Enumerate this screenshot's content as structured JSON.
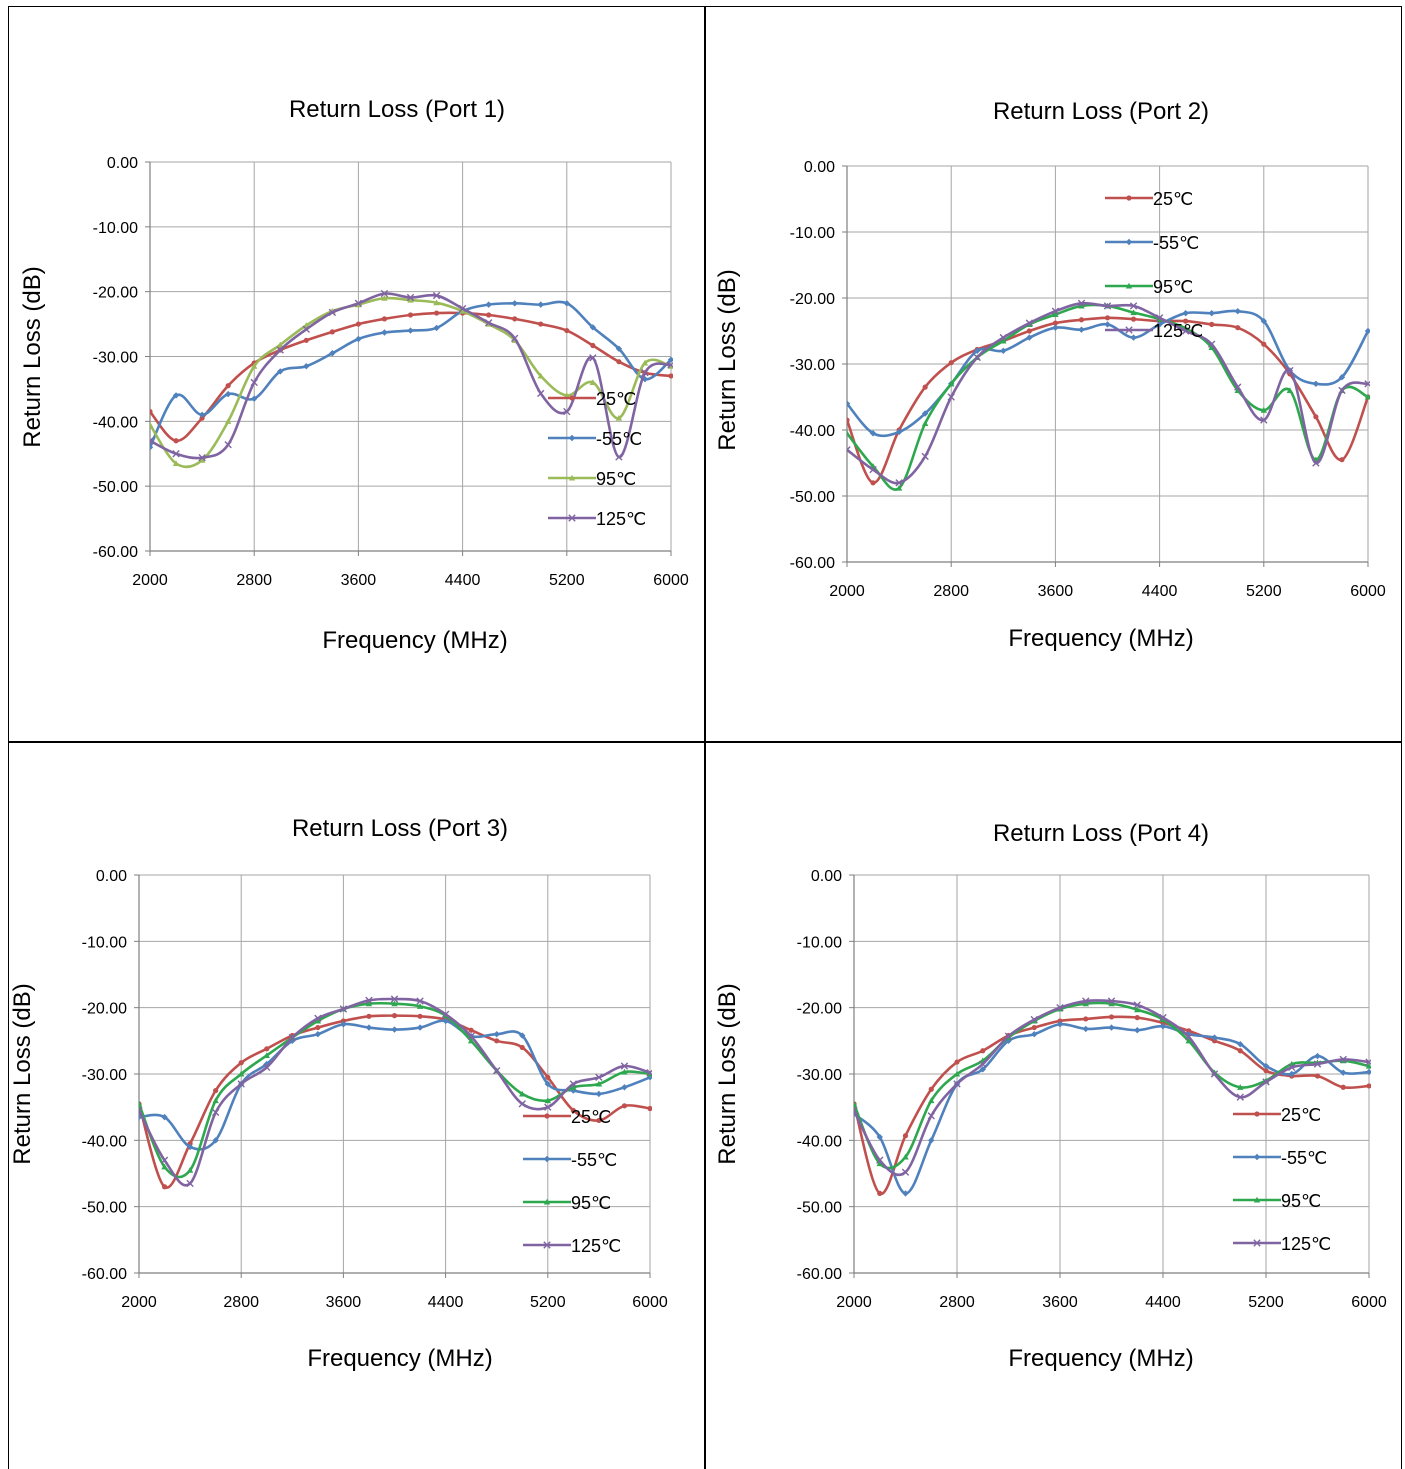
{
  "charts": [
    {
      "title": "Return Loss (Port 1)",
      "xlabel": "Frequency (MHz)",
      "ylabel": "Return Loss (dB)"
    },
    {
      "title": "Return Loss (Port 2)",
      "xlabel": "Frequency (MHz)",
      "ylabel": "Return Loss (dB)"
    },
    {
      "title": "Return Loss (Port 3)",
      "xlabel": "Frequency (MHz)",
      "ylabel": "Return Loss (dB)"
    },
    {
      "title": "Return Loss (Port 4)",
      "xlabel": "Frequency (MHz)",
      "ylabel": "Return Loss (dB)"
    }
  ],
  "chart_data": [
    {
      "type": "line",
      "title": "Return Loss (Port 1)",
      "xlabel": "Frequency (MHz)",
      "ylabel": "Return Loss (dB)",
      "xlim": [
        2000,
        6000
      ],
      "ylim": [
        -60,
        0
      ],
      "xticks": [
        "2000",
        "2800",
        "3600",
        "4400",
        "5200",
        "6000"
      ],
      "yticks": [
        "0.00",
        "-10.00",
        "-20.00",
        "-30.00",
        "-40.00",
        "-50.00",
        "-60.00"
      ],
      "grid": true,
      "legend_position": "right",
      "x": [
        2000,
        2200,
        2400,
        2600,
        2800,
        3000,
        3200,
        3400,
        3600,
        3800,
        4000,
        4200,
        4400,
        4600,
        4800,
        5000,
        5200,
        5400,
        5600,
        5800,
        6000
      ],
      "series": [
        {
          "name": "25℃",
          "color": "#c0504d",
          "marker": "circle",
          "values": [
            -38.5,
            -43,
            -39.5,
            -34.5,
            -31,
            -29,
            -27.5,
            -26.2,
            -25,
            -24.2,
            -23.6,
            -23.3,
            -23.3,
            -23.6,
            -24.2,
            -25,
            -26,
            -28.3,
            -30.8,
            -32.5,
            -33
          ]
        },
        {
          "name": "-55℃",
          "color": "#4f81bd",
          "marker": "diamond",
          "values": [
            -44,
            -36,
            -39,
            -35.8,
            -36.5,
            -32.3,
            -31.5,
            -29.5,
            -27.3,
            -26.3,
            -26,
            -25.6,
            -23,
            -22,
            -21.8,
            -22,
            -21.8,
            -25.5,
            -28.8,
            -33.5,
            -30.5
          ]
        },
        {
          "name": "95℃",
          "color": "#9bbb59",
          "marker": "triangle",
          "values": [
            -40.5,
            -46.5,
            -46,
            -40,
            -31.5,
            -28.2,
            -25.2,
            -23,
            -22,
            -21,
            -21.3,
            -21.7,
            -23,
            -25,
            -27.5,
            -33,
            -36,
            -34,
            -39.5,
            -31,
            -31.5
          ]
        },
        {
          "name": "125℃",
          "color": "#8064a2",
          "marker": "x",
          "values": [
            -43,
            -45,
            -45.6,
            -43.6,
            -34,
            -29,
            -25.8,
            -23.2,
            -21.8,
            -20.3,
            -20.9,
            -20.6,
            -22.6,
            -24.8,
            -27.2,
            -35.7,
            -38.5,
            -30.2,
            -45.5,
            -32.5,
            -31.3
          ]
        }
      ]
    },
    {
      "type": "line",
      "title": "Return Loss (Port 2)",
      "xlabel": "Frequency (MHz)",
      "ylabel": "Return Loss (dB)",
      "xlim": [
        2000,
        6000
      ],
      "ylim": [
        -60,
        0
      ],
      "xticks": [
        "2000",
        "2800",
        "3600",
        "4400",
        "5200",
        "6000"
      ],
      "yticks": [
        "0.00",
        "-10.00",
        "-20.00",
        "-30.00",
        "-40.00",
        "-50.00",
        "-60.00"
      ],
      "grid": true,
      "legend_position": "top-right",
      "x": [
        2000,
        2200,
        2400,
        2600,
        2800,
        3000,
        3200,
        3400,
        3600,
        3800,
        4000,
        4200,
        4400,
        4600,
        4800,
        5000,
        5200,
        5400,
        5600,
        5800,
        6000
      ],
      "series": [
        {
          "name": "25℃",
          "color": "#c0504d",
          "marker": "circle",
          "values": [
            -38.5,
            -48,
            -40,
            -33.5,
            -29.8,
            -27.8,
            -26.5,
            -25,
            -23.8,
            -23.3,
            -23,
            -23.2,
            -23.5,
            -23.5,
            -24,
            -24.5,
            -27,
            -31.5,
            -38,
            -44.5,
            -35
          ]
        },
        {
          "name": "-55℃",
          "color": "#4f81bd",
          "marker": "diamond",
          "values": [
            -36,
            -40.5,
            -40.3,
            -37.5,
            -33,
            -28,
            -28,
            -26,
            -24.5,
            -24.8,
            -24,
            -26,
            -24,
            -22.3,
            -22.3,
            -22,
            -23.5,
            -31,
            -33,
            -32,
            -25
          ]
        },
        {
          "name": "95℃",
          "color": "#2ea84e",
          "marker": "triangle",
          "values": [
            -40.5,
            -45.5,
            -48.8,
            -39,
            -33,
            -29,
            -26.5,
            -24,
            -22.5,
            -21.2,
            -21.2,
            -22.2,
            -23.2,
            -24.6,
            -27.5,
            -34,
            -37,
            -34,
            -44.5,
            -34,
            -35
          ]
        },
        {
          "name": "125℃",
          "color": "#8064a2",
          "marker": "x",
          "values": [
            -43,
            -46,
            -48,
            -44,
            -35,
            -29,
            -26,
            -23.8,
            -22,
            -20.8,
            -21.2,
            -21.2,
            -23,
            -25,
            -27,
            -33.5,
            -38.5,
            -31,
            -45,
            -34,
            -33
          ]
        }
      ]
    },
    {
      "type": "line",
      "title": "Return Loss (Port 3)",
      "xlabel": "Frequency (MHz)",
      "ylabel": "Return Loss (dB)",
      "xlim": [
        2000,
        6000
      ],
      "ylim": [
        -60,
        0
      ],
      "xticks": [
        "2000",
        "2800",
        "3600",
        "4400",
        "5200",
        "6000"
      ],
      "yticks": [
        "0.00",
        "-10.00",
        "-20.00",
        "-30.00",
        "-40.00",
        "-50.00",
        "-60.00"
      ],
      "grid": true,
      "legend_position": "right",
      "x": [
        2000,
        2200,
        2400,
        2600,
        2800,
        3000,
        3200,
        3400,
        3600,
        3800,
        4000,
        4200,
        4400,
        4600,
        4800,
        5000,
        5200,
        5400,
        5600,
        5800,
        6000
      ],
      "series": [
        {
          "name": "25℃",
          "color": "#c0504d",
          "marker": "circle",
          "values": [
            -34.5,
            -47,
            -40.5,
            -32.5,
            -28.3,
            -26.2,
            -24.2,
            -23,
            -22,
            -21.3,
            -21.2,
            -21.3,
            -21.8,
            -23.4,
            -25,
            -26,
            -30.5,
            -35.5,
            -37,
            -34.8,
            -35.2
          ]
        },
        {
          "name": "-55℃",
          "color": "#4f81bd",
          "marker": "diamond",
          "values": [
            -36.5,
            -36.5,
            -41,
            -40,
            -31.5,
            -28.5,
            -25,
            -24,
            -22.5,
            -23,
            -23.3,
            -23,
            -22,
            -24.3,
            -24,
            -24.2,
            -31.5,
            -32.5,
            -33,
            -32,
            -30.5
          ]
        },
        {
          "name": "95℃",
          "color": "#2ea84e",
          "marker": "triangle",
          "values": [
            -34.5,
            -44,
            -44.5,
            -34,
            -30,
            -27.2,
            -24.5,
            -22,
            -20.2,
            -19.4,
            -19.4,
            -19.8,
            -21.2,
            -25,
            -29.5,
            -33,
            -34,
            -32,
            -31.5,
            -29.7,
            -30
          ]
        },
        {
          "name": "125℃",
          "color": "#8064a2",
          "marker": "x",
          "values": [
            -35.5,
            -43,
            -46.5,
            -35.8,
            -31.5,
            -29,
            -24.5,
            -21.6,
            -20.2,
            -18.9,
            -18.7,
            -19,
            -21,
            -24.3,
            -29.5,
            -34.5,
            -35,
            -31.5,
            -30.5,
            -28.8,
            -29.8
          ]
        }
      ]
    },
    {
      "type": "line",
      "title": "Return Loss (Port 4)",
      "xlabel": "Frequency (MHz)",
      "ylabel": "Return Loss (dB)",
      "xlim": [
        2000,
        6000
      ],
      "ylim": [
        -60,
        0
      ],
      "xticks": [
        "2000",
        "2800",
        "3600",
        "4400",
        "5200",
        "6000"
      ],
      "yticks": [
        "0.00",
        "-10.00",
        "-20.00",
        "-30.00",
        "-40.00",
        "-50.00",
        "-60.00"
      ],
      "grid": true,
      "legend_position": "right",
      "x": [
        2000,
        2200,
        2400,
        2600,
        2800,
        3000,
        3200,
        3400,
        3600,
        3800,
        4000,
        4200,
        4400,
        4600,
        4800,
        5000,
        5200,
        5400,
        5600,
        5800,
        6000
      ],
      "series": [
        {
          "name": "25℃",
          "color": "#c0504d",
          "marker": "circle",
          "values": [
            -34.5,
            -48,
            -39.3,
            -32.3,
            -28.2,
            -26.5,
            -24.2,
            -23,
            -22,
            -21.7,
            -21.4,
            -21.5,
            -22.3,
            -23.5,
            -25,
            -26.5,
            -29.5,
            -30.3,
            -30.3,
            -32,
            -31.8
          ]
        },
        {
          "name": "-55℃",
          "color": "#4f81bd",
          "marker": "diamond",
          "values": [
            -36,
            -39.5,
            -48,
            -40,
            -31.5,
            -29.3,
            -25,
            -24,
            -22.5,
            -23.2,
            -23,
            -23.4,
            -22.8,
            -24,
            -24.5,
            -25.5,
            -28.8,
            -30,
            -27.3,
            -29.8,
            -29.7
          ]
        },
        {
          "name": "95℃",
          "color": "#2ea84e",
          "marker": "triangle",
          "values": [
            -34.5,
            -43.5,
            -42.5,
            -34,
            -30,
            -28,
            -24.5,
            -22,
            -20.2,
            -19.4,
            -19.4,
            -20.3,
            -21.8,
            -25,
            -29.8,
            -32,
            -31,
            -28.5,
            -28.3,
            -28,
            -28.8
          ]
        },
        {
          "name": "125℃",
          "color": "#8064a2",
          "marker": "x",
          "values": [
            -35.5,
            -43,
            -44.8,
            -36.3,
            -31.5,
            -28.5,
            -24.3,
            -21.8,
            -20,
            -19,
            -19,
            -19.6,
            -21.5,
            -24.4,
            -30,
            -33.5,
            -31.2,
            -29,
            -28.5,
            -27.8,
            -28.2
          ]
        }
      ]
    }
  ]
}
